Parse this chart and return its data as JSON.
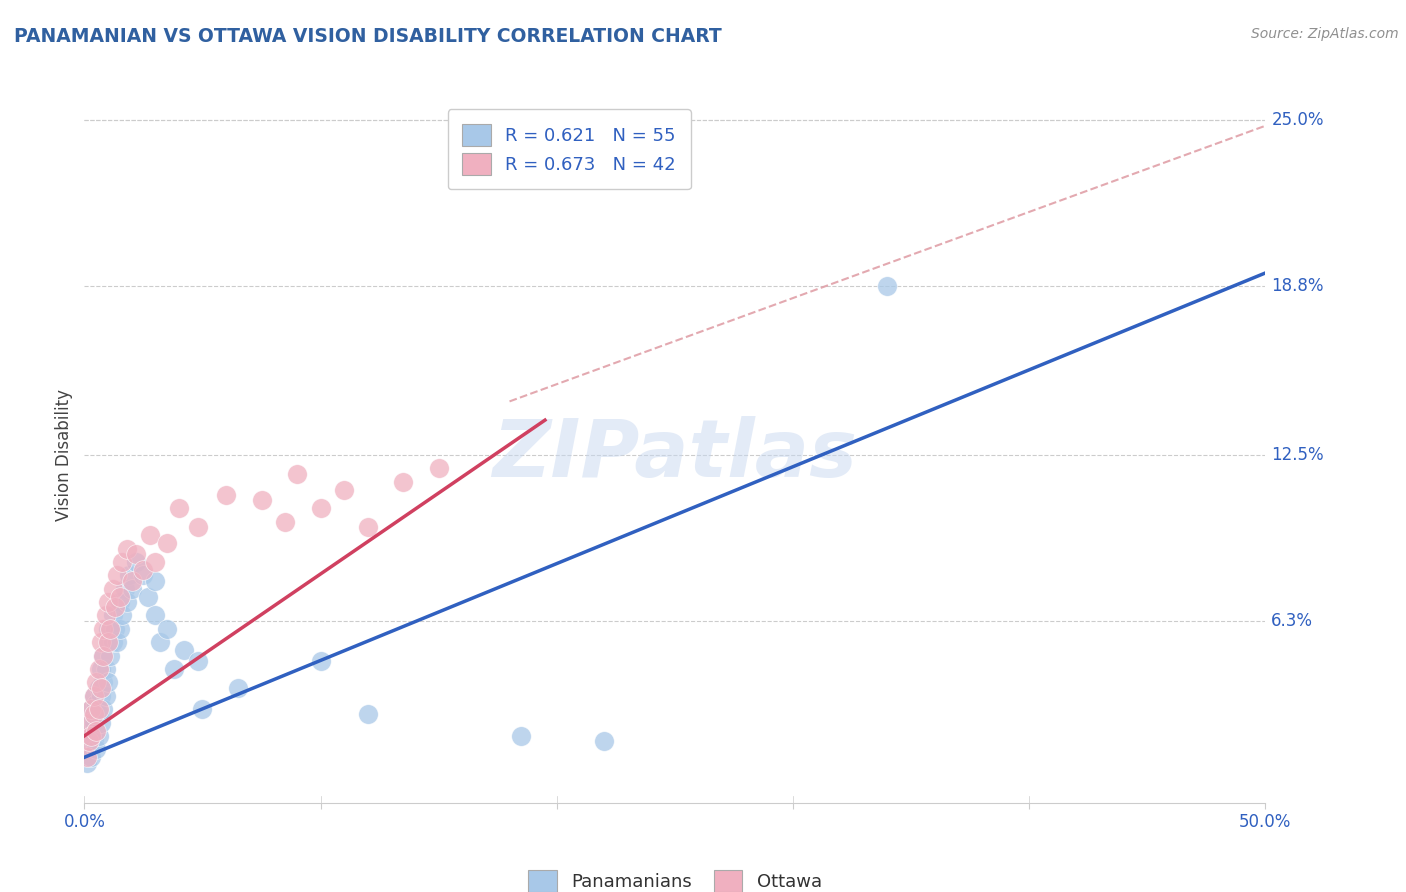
{
  "title": "PANAMANIAN VS OTTAWA VISION DISABILITY CORRELATION CHART",
  "source": "Source: ZipAtlas.com",
  "ylabel": "Vision Disability",
  "xlim": [
    0.0,
    0.5
  ],
  "ylim": [
    -0.005,
    0.255
  ],
  "ytick_labels": [
    "6.3%",
    "12.5%",
    "18.8%",
    "25.0%"
  ],
  "ytick_positions": [
    0.063,
    0.125,
    0.188,
    0.25
  ],
  "legend_r1": "R = 0.621",
  "legend_n1": "N = 55",
  "legend_r2": "R = 0.673",
  "legend_n2": "N = 42",
  "color_blue": "#A8C8E8",
  "color_pink": "#F0B0C0",
  "color_blue_line": "#3060C0",
  "color_pink_line": "#D04060",
  "color_diag_line": "#E0A0A8",
  "watermark_color": "#C8D8F0",
  "title_color": "#3060A0",
  "source_color": "#909090",
  "axis_color": "#3060C0",
  "grid_color": "#CCCCCC",
  "blue_scatter_x": [
    0.001,
    0.002,
    0.002,
    0.003,
    0.003,
    0.003,
    0.004,
    0.004,
    0.004,
    0.005,
    0.005,
    0.005,
    0.006,
    0.006,
    0.006,
    0.007,
    0.007,
    0.007,
    0.008,
    0.008,
    0.008,
    0.009,
    0.009,
    0.01,
    0.01,
    0.01,
    0.011,
    0.012,
    0.012,
    0.013,
    0.014,
    0.015,
    0.015,
    0.016,
    0.017,
    0.018,
    0.019,
    0.02,
    0.022,
    0.025,
    0.027,
    0.03,
    0.03,
    0.032,
    0.035,
    0.038,
    0.042,
    0.048,
    0.05,
    0.065,
    0.1,
    0.12,
    0.185,
    0.22,
    0.34
  ],
  "blue_scatter_y": [
    0.01,
    0.015,
    0.02,
    0.025,
    0.012,
    0.03,
    0.018,
    0.025,
    0.035,
    0.015,
    0.022,
    0.032,
    0.02,
    0.028,
    0.038,
    0.025,
    0.035,
    0.045,
    0.03,
    0.04,
    0.05,
    0.035,
    0.045,
    0.04,
    0.055,
    0.06,
    0.05,
    0.055,
    0.065,
    0.06,
    0.055,
    0.06,
    0.07,
    0.065,
    0.075,
    0.07,
    0.08,
    0.075,
    0.085,
    0.08,
    0.072,
    0.078,
    0.065,
    0.055,
    0.06,
    0.045,
    0.052,
    0.048,
    0.03,
    0.038,
    0.048,
    0.028,
    0.02,
    0.018,
    0.188
  ],
  "pink_scatter_x": [
    0.001,
    0.002,
    0.002,
    0.003,
    0.003,
    0.004,
    0.004,
    0.005,
    0.005,
    0.006,
    0.006,
    0.007,
    0.007,
    0.008,
    0.008,
    0.009,
    0.01,
    0.01,
    0.011,
    0.012,
    0.013,
    0.014,
    0.015,
    0.016,
    0.018,
    0.02,
    0.022,
    0.025,
    0.028,
    0.03,
    0.035,
    0.04,
    0.048,
    0.06,
    0.075,
    0.085,
    0.09,
    0.1,
    0.11,
    0.12,
    0.135,
    0.15
  ],
  "pink_scatter_y": [
    0.012,
    0.018,
    0.025,
    0.02,
    0.03,
    0.028,
    0.035,
    0.022,
    0.04,
    0.03,
    0.045,
    0.038,
    0.055,
    0.05,
    0.06,
    0.065,
    0.055,
    0.07,
    0.06,
    0.075,
    0.068,
    0.08,
    0.072,
    0.085,
    0.09,
    0.078,
    0.088,
    0.082,
    0.095,
    0.085,
    0.092,
    0.105,
    0.098,
    0.11,
    0.108,
    0.1,
    0.118,
    0.105,
    0.112,
    0.098,
    0.115,
    0.12
  ],
  "blue_line_x": [
    0.0,
    0.5
  ],
  "blue_line_y": [
    0.012,
    0.193
  ],
  "pink_line_x": [
    0.0,
    0.195
  ],
  "pink_line_y": [
    0.02,
    0.138
  ],
  "diag_line_x": [
    0.18,
    0.5
  ],
  "diag_line_y": [
    0.145,
    0.248
  ]
}
